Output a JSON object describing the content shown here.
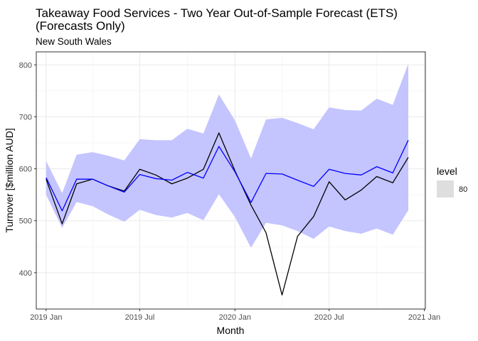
{
  "chart_data": {
    "type": "line",
    "title_line1": "Takeaway Food Services - Two Year Out-of-Sample Forecast (ETS)",
    "title_line2": "(Forecasts Only)",
    "subtitle": "New South Wales",
    "xlabel": "Month",
    "ylabel": "Turnover [$million AUD]",
    "x_range": [
      "2018-12-13",
      "2021-01-03"
    ],
    "ylim": [
      330,
      825
    ],
    "x_ticks": [
      {
        "date": "2019-01-01",
        "label": "2019 Jan"
      },
      {
        "date": "2019-07-01",
        "label": "2019 Jul"
      },
      {
        "date": "2020-01-01",
        "label": "2020 Jan"
      },
      {
        "date": "2020-07-01",
        "label": "2020 Jul"
      },
      {
        "date": "2021-01-01",
        "label": "2021 Jan"
      }
    ],
    "y_ticks": [
      400,
      500,
      600,
      700,
      800
    ],
    "x": [
      "2019-01-01",
      "2019-02-01",
      "2019-03-01",
      "2019-04-01",
      "2019-05-01",
      "2019-06-01",
      "2019-07-01",
      "2019-08-01",
      "2019-09-01",
      "2019-10-01",
      "2019-11-01",
      "2019-12-01",
      "2020-01-01",
      "2020-02-01",
      "2020-03-01",
      "2020-04-01",
      "2020-05-01",
      "2020-06-01",
      "2020-07-01",
      "2020-08-01",
      "2020-09-01",
      "2020-10-01",
      "2020-11-01",
      "2020-12-01"
    ],
    "series": [
      {
        "role": "actual",
        "color": "#000000",
        "values": [
          580,
          494,
          571,
          580,
          567,
          557,
          599,
          588,
          571,
          582,
          599,
          669,
          596,
          530,
          477,
          357,
          470,
          508,
          575,
          540,
          559,
          585,
          573,
          622
        ]
      },
      {
        "role": "forecast",
        "color": "#0000ff",
        "values": [
          583,
          519,
          580,
          580,
          567,
          555,
          589,
          581,
          578,
          593,
          582,
          643,
          594,
          535,
          591,
          590,
          578,
          566,
          599,
          591,
          588,
          604,
          592,
          655
        ]
      }
    ],
    "interval": {
      "level": "80",
      "color": "#c4c4ff",
      "lower": [
        550,
        486,
        536,
        528,
        512,
        498,
        521,
        511,
        506,
        515,
        501,
        551,
        507,
        448,
        496,
        491,
        480,
        465,
        489,
        480,
        475,
        485,
        473,
        520
      ],
      "upper": [
        615,
        553,
        627,
        632,
        625,
        616,
        657,
        655,
        655,
        677,
        668,
        743,
        693,
        620,
        695,
        698,
        688,
        676,
        718,
        713,
        712,
        735,
        723,
        802
      ]
    },
    "legend": {
      "title": "level",
      "entry": "80",
      "swatch_color": "#dedede",
      "position": "right"
    },
    "grid": true
  }
}
